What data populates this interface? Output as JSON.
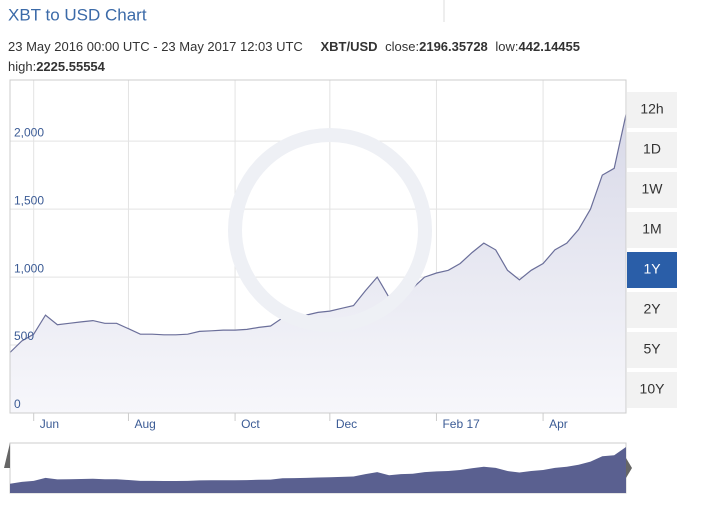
{
  "chart_data": {
    "type": "area",
    "title": "XBT to USD Chart",
    "subtitle": "23 May 2016 00:00 UTC - 23 May 2017 12:03 UTC",
    "pair": "XBT/USD",
    "stats": [
      {
        "label": "close:",
        "value": 2196.35728
      },
      {
        "label": "low:",
        "value": 442.14455
      },
      {
        "label": "high:",
        "value": 2225.55554
      }
    ],
    "categories": [
      null,
      null,
      "Jun",
      null,
      null,
      null,
      null,
      null,
      null,
      null,
      "Aug",
      null,
      null,
      null,
      null,
      null,
      null,
      null,
      null,
      "Oct",
      null,
      null,
      null,
      null,
      null,
      null,
      null,
      "Dec",
      null,
      null,
      null,
      null,
      null,
      null,
      null,
      null,
      "Feb 17",
      null,
      null,
      null,
      null,
      null,
      null,
      null,
      null,
      "Apr",
      null,
      null,
      null,
      null,
      null,
      null,
      null
    ],
    "series": [
      {
        "name": "XBT/USD",
        "color": "#6b6f9a",
        "values": [
          445,
          530,
          580,
          720,
          650,
          660,
          670,
          680,
          660,
          660,
          620,
          580,
          580,
          575,
          575,
          580,
          600,
          605,
          610,
          610,
          615,
          630,
          640,
          700,
          710,
          720,
          740,
          750,
          770,
          790,
          900,
          1000,
          850,
          900,
          920,
          1000,
          1030,
          1050,
          1100,
          1180,
          1250,
          1200,
          1050,
          980,
          1050,
          1100,
          1200,
          1250,
          1350,
          1500,
          1750,
          1800,
          2196
        ]
      }
    ],
    "ylim": [
      0,
      2450
    ],
    "yticks": [
      0,
      500,
      {
        "value": 1000,
        "label": "1,000"
      },
      {
        "value": 1500,
        "label": "1,500"
      },
      {
        "value": 2000,
        "label": "2,000"
      }
    ],
    "grid": true,
    "range_buttons": [
      "12h",
      "1D",
      "1W",
      "1M",
      "1Y",
      "2Y",
      "5Y",
      "10Y"
    ],
    "active_range": "1Y"
  }
}
